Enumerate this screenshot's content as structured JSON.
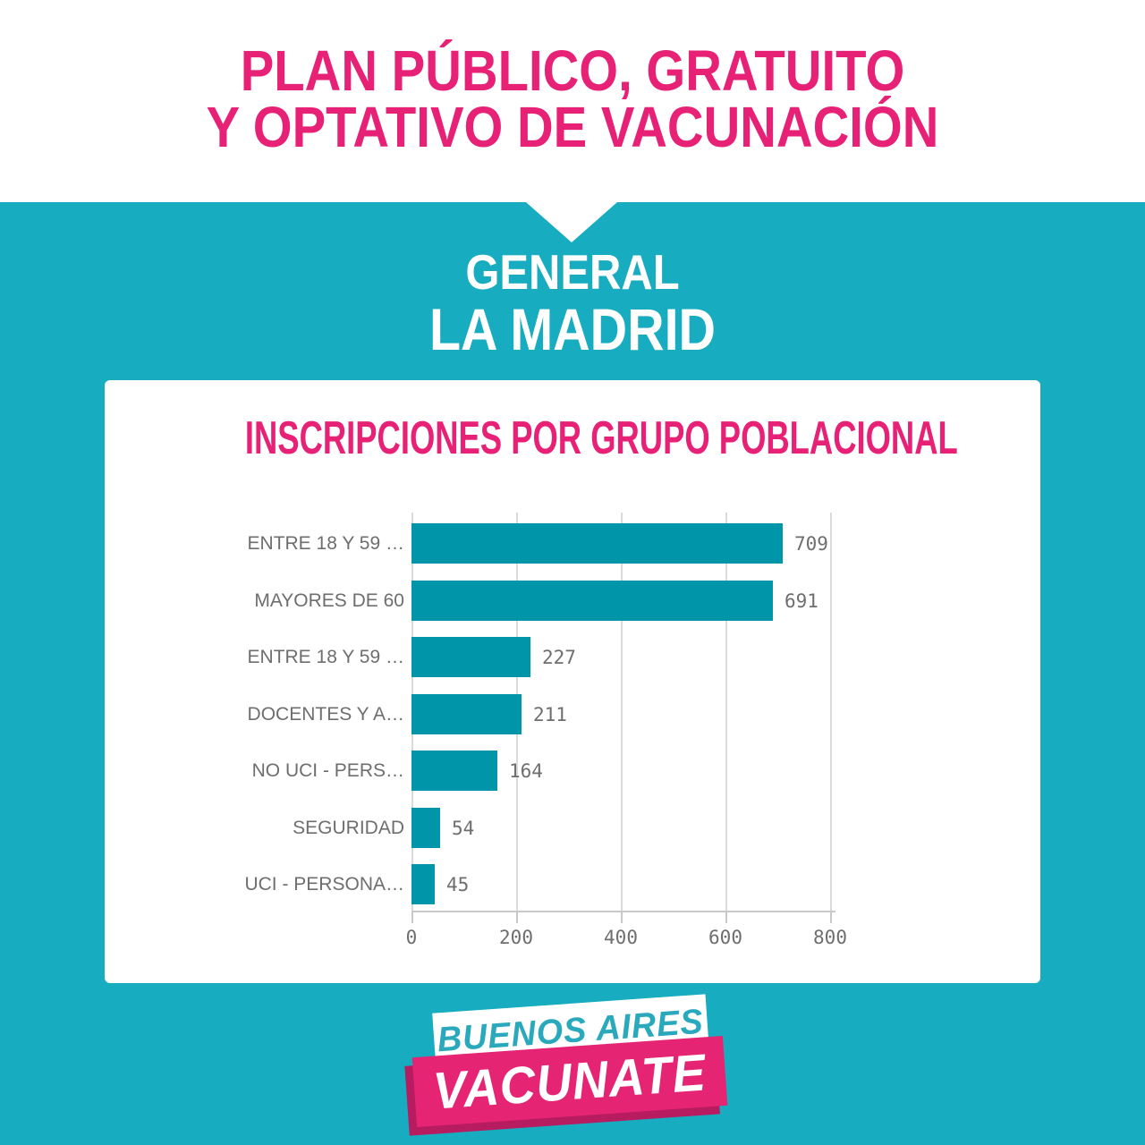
{
  "header": {
    "title_line1": "PLAN PÚBLICO, GRATUITO",
    "title_line2": "Y OPTATIVO DE VACUNACIÓN"
  },
  "location": {
    "region": "GENERAL",
    "name": "LA MADRID"
  },
  "chart_data": {
    "type": "bar",
    "orientation": "horizontal",
    "title": "INSCRIPCIONES POR GRUPO POBLACIONAL",
    "categories": [
      "ENTRE 18 Y 59 …",
      "MAYORES DE 60",
      "ENTRE 18 Y 59 …",
      "DOCENTES Y A…",
      "NO UCI - PERS…",
      "SEGURIDAD",
      "UCI - PERSONA…"
    ],
    "values": [
      709,
      691,
      227,
      211,
      164,
      54,
      45
    ],
    "xlabel": "",
    "ylabel": "",
    "xlim": [
      0,
      800
    ],
    "x_ticks": [
      0,
      200,
      400,
      600,
      800
    ],
    "grid": true,
    "legend": "none",
    "bar_color": "#0095A8",
    "label_color": "#6E6E6E"
  },
  "logo": {
    "top": "BUENOS AIRES",
    "bottom": "VACUNATE"
  },
  "colors": {
    "pink_accent": "#E72176",
    "teal_background": "#17ACBF",
    "bar_teal": "#0095A8",
    "logo_teal": "#2AA9BD",
    "logo_pink": "#E62474",
    "logo_pink_shade": "#B81C60",
    "grid_gray": "#DADADA",
    "text_gray": "#6E6E6E"
  }
}
